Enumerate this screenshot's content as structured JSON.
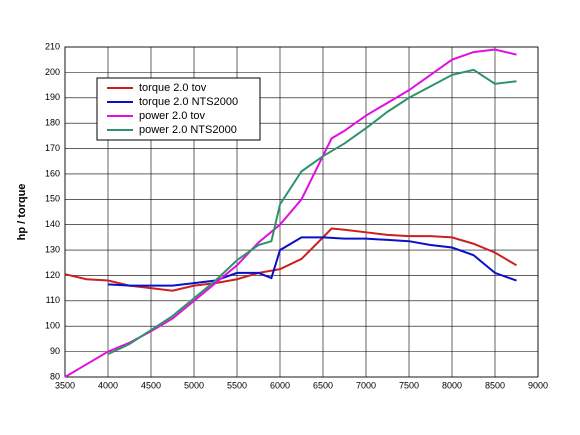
{
  "chart_data": {
    "type": "line",
    "ylabel": "hp / torque",
    "xlim": [
      3500,
      9000
    ],
    "xticks": [
      3500,
      4000,
      4500,
      5000,
      5500,
      6000,
      6500,
      7000,
      7500,
      8000,
      8500,
      9000
    ],
    "ylim": [
      80,
      210
    ],
    "yticks": [
      80,
      90,
      100,
      110,
      120,
      130,
      140,
      150,
      160,
      170,
      180,
      190,
      200,
      210
    ],
    "grid": true,
    "legend": "upper left",
    "series": [
      {
        "name": "torque 2.0 tov",
        "color": "#cc1f1f",
        "x": [
          3500,
          3750,
          4000,
          4250,
          4500,
          4750,
          5000,
          5250,
          5500,
          5750,
          6000,
          6250,
          6500,
          6600,
          6750,
          7000,
          7250,
          7500,
          7750,
          8000,
          8250,
          8500,
          8750
        ],
        "values": [
          120.5,
          118.5,
          118,
          116,
          115,
          114,
          116,
          117,
          118.5,
          121,
          122.5,
          126.5,
          135,
          138.5,
          138,
          137,
          136,
          135.5,
          135.5,
          135,
          132.5,
          129,
          124
        ]
      },
      {
        "name": "torque 2.0 NTS2000",
        "color": "#0a10c8",
        "x": [
          4000,
          4250,
          4500,
          4750,
          5000,
          5250,
          5500,
          5750,
          5900,
          6000,
          6250,
          6500,
          6750,
          7000,
          7250,
          7500,
          7750,
          8000,
          8250,
          8500,
          8750
        ],
        "values": [
          116.5,
          116,
          116,
          116,
          117,
          118,
          121,
          121,
          119,
          130,
          135,
          135,
          134.5,
          134.5,
          134,
          133.5,
          132,
          131,
          128,
          121,
          118
        ]
      },
      {
        "name": "power 2.0 tov",
        "color": "#e010e0",
        "x": [
          3500,
          3750,
          4000,
          4250,
          4500,
          4750,
          5000,
          5250,
          5500,
          5750,
          6000,
          6250,
          6600,
          6750,
          7000,
          7250,
          7500,
          7750,
          8000,
          8250,
          8500,
          8750
        ],
        "values": [
          80,
          85,
          90,
          93.5,
          98,
          103,
          110,
          117,
          124,
          133,
          140,
          150,
          174,
          177,
          183,
          188,
          193,
          199,
          205,
          208,
          209,
          207
        ]
      },
      {
        "name": "power 2.0 NTS2000",
        "color": "#2e9468",
        "x": [
          4000,
          4250,
          4500,
          4750,
          5000,
          5250,
          5500,
          5750,
          5900,
          6000,
          6250,
          6500,
          6750,
          7000,
          7250,
          7500,
          7750,
          8000,
          8250,
          8500,
          8750
        ],
        "values": [
          89,
          93,
          98.5,
          104,
          111,
          118,
          126,
          132,
          133.5,
          148,
          161,
          167,
          172,
          178,
          184.5,
          190,
          194.5,
          199,
          201,
          195.5,
          196.5
        ]
      }
    ]
  }
}
